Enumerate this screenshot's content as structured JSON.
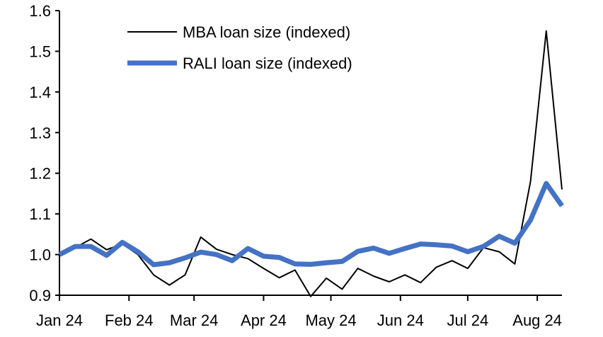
{
  "chart_data": {
    "type": "line",
    "title": "",
    "xlabel": "",
    "ylabel": "",
    "ylim": [
      0.9,
      1.6
    ],
    "yticks": [
      "0.9",
      "1.0",
      "1.1",
      "1.2",
      "1.3",
      "1.4",
      "1.5",
      "1.6"
    ],
    "xlim": [
      "2024-01-01",
      "2024-08-12"
    ],
    "xticks": [
      {
        "date": "2024-01-01",
        "label": "Jan 24"
      },
      {
        "date": "2024-02-01",
        "label": "Feb 24"
      },
      {
        "date": "2024-03-01",
        "label": "Mar 24"
      },
      {
        "date": "2024-04-01",
        "label": "Apr 24"
      },
      {
        "date": "2024-05-01",
        "label": "May 24"
      },
      {
        "date": "2024-06-01",
        "label": "Jun 24"
      },
      {
        "date": "2024-07-01",
        "label": "Jul 24"
      },
      {
        "date": "2024-08-01",
        "label": "Aug 24"
      }
    ],
    "grid": false,
    "legend_position": "top-center",
    "x": [
      "2024-01-01",
      "2024-01-08",
      "2024-01-15",
      "2024-01-22",
      "2024-01-29",
      "2024-02-05",
      "2024-02-12",
      "2024-02-19",
      "2024-02-26",
      "2024-03-04",
      "2024-03-11",
      "2024-03-18",
      "2024-03-25",
      "2024-04-01",
      "2024-04-08",
      "2024-04-15",
      "2024-04-22",
      "2024-04-29",
      "2024-05-06",
      "2024-05-13",
      "2024-05-20",
      "2024-05-27",
      "2024-06-03",
      "2024-06-10",
      "2024-06-17",
      "2024-06-24",
      "2024-07-01",
      "2024-07-08",
      "2024-07-15",
      "2024-07-22",
      "2024-07-29",
      "2024-08-05",
      "2024-08-12"
    ],
    "series": [
      {
        "name": "MBA loan size (indexed)",
        "color": "#000000",
        "values": [
          1.0,
          1.017,
          1.038,
          1.012,
          1.026,
          1.0,
          0.95,
          0.925,
          0.95,
          1.043,
          1.013,
          1.0,
          0.99,
          0.966,
          0.943,
          0.962,
          0.897,
          0.942,
          0.915,
          0.966,
          0.947,
          0.933,
          0.95,
          0.931,
          0.969,
          0.985,
          0.966,
          1.017,
          1.007,
          0.977,
          1.18,
          1.55,
          1.16
        ]
      },
      {
        "name": "RALI loan size (indexed)",
        "color": "#4472C4",
        "values": [
          1.0,
          1.02,
          1.02,
          0.998,
          1.03,
          1.007,
          0.975,
          0.98,
          0.992,
          1.006,
          1.0,
          0.985,
          1.015,
          0.996,
          0.993,
          0.977,
          0.976,
          0.98,
          0.983,
          1.008,
          1.016,
          1.003,
          1.015,
          1.026,
          1.024,
          1.021,
          1.007,
          1.02,
          1.045,
          1.028,
          1.085,
          1.175,
          1.12
        ]
      }
    ]
  }
}
